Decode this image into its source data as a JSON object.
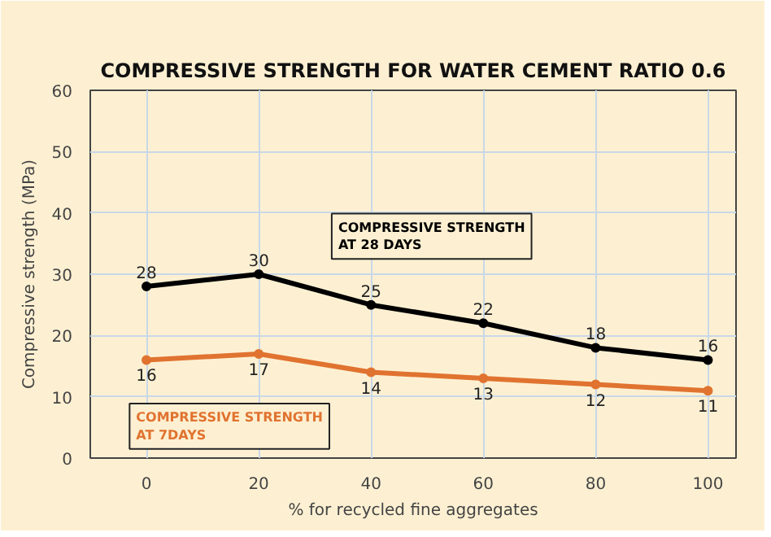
{
  "chart_data": {
    "type": "line",
    "title": "COMPRESSIVE STRENGTH FOR WATER CEMENT RATIO 0.6",
    "xlabel": "% for recycled fine aggregates",
    "ylabel": "Compressive strength (MPa)",
    "x": [
      0,
      20,
      40,
      60,
      80,
      100
    ],
    "series": [
      {
        "name": "COMPRESSIVE STRENGTH AT 28 DAYS",
        "color": "#000000",
        "values": [
          28,
          30,
          25,
          22,
          18,
          16
        ]
      },
      {
        "name": "COMPRESSIVE STRENGTH AT 7DAYS",
        "color": "#e07330",
        "values": [
          16,
          17,
          14,
          13,
          12,
          11
        ]
      }
    ],
    "xlim": [
      -10,
      105
    ],
    "ylim": [
      0,
      60
    ],
    "xticks": [
      0,
      20,
      40,
      60,
      80,
      100
    ],
    "yticks": [
      0,
      10,
      20,
      30,
      40,
      50,
      60
    ],
    "grid": true,
    "legend": false,
    "marker": "circle",
    "line_style": "solid",
    "data_labels": true
  }
}
